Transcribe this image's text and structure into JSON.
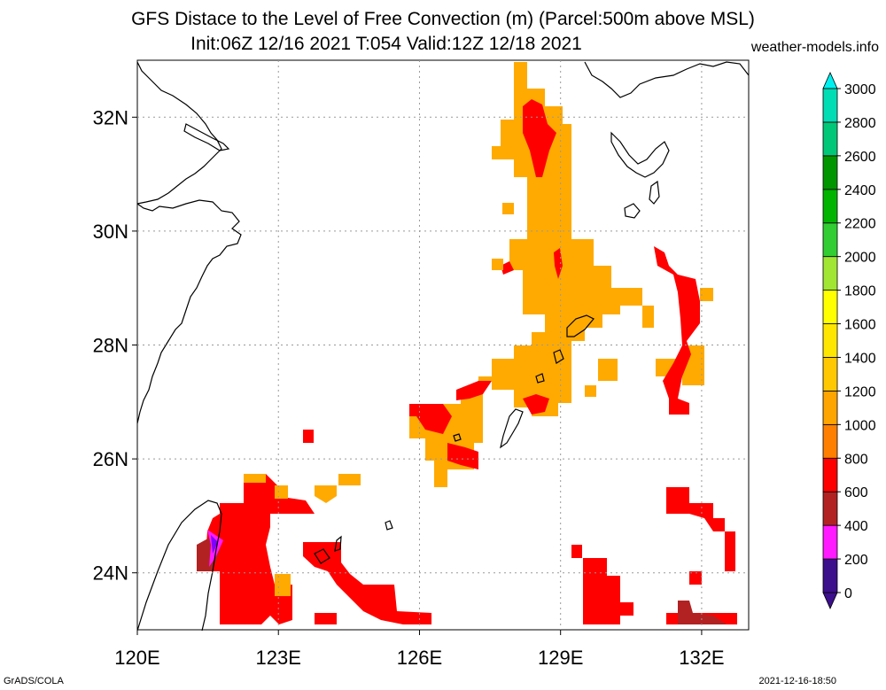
{
  "header": {
    "title_line1": "GFS Distace to the Level of Free Convection (m) (Parcel:500m above MSL)",
    "title_line2": "Init:06Z 12/16 2021 T:054 Valid:12Z 12/18 2021",
    "site": "weather-models.info"
  },
  "footer": {
    "left": "GrADS/COLA",
    "right": "2021-12-16-18:50"
  },
  "map": {
    "lon_range": [
      120,
      133
    ],
    "lat_range": [
      23,
      33
    ],
    "lon_ticks": [
      {
        "value": 120,
        "label": "120E"
      },
      {
        "value": 123,
        "label": "123E"
      },
      {
        "value": 126,
        "label": "126E"
      },
      {
        "value": 129,
        "label": "129E"
      },
      {
        "value": 132,
        "label": "132E"
      }
    ],
    "lat_ticks": [
      {
        "value": 24,
        "label": "24N"
      },
      {
        "value": 26,
        "label": "26N"
      },
      {
        "value": 28,
        "label": "28N"
      },
      {
        "value": 30,
        "label": "30N"
      },
      {
        "value": 32,
        "label": "32N"
      }
    ],
    "grid": true
  },
  "colorbar": {
    "labels": [
      "0",
      "200",
      "400",
      "600",
      "800",
      "1000",
      "1200",
      "1400",
      "1600",
      "1800",
      "2000",
      "2200",
      "2400",
      "2600",
      "2800",
      "3000"
    ],
    "colors": [
      "#3c0f8c",
      "#ff1aff",
      "#b22222",
      "#ff0000",
      "#ff7f00",
      "#ffa500",
      "#ffc800",
      "#ffe600",
      "#ffff00",
      "#a0e632",
      "#32cd32",
      "#00b400",
      "#009600",
      "#00c878",
      "#00dcb4",
      "#00f0f0"
    ]
  },
  "colors": {
    "red": "#ff0000",
    "dark_red": "#b22222",
    "orange": "#ffaa00",
    "dark_orange": "#f08c00",
    "magenta": "#ff1aff",
    "purple": "#7f00ff"
  }
}
